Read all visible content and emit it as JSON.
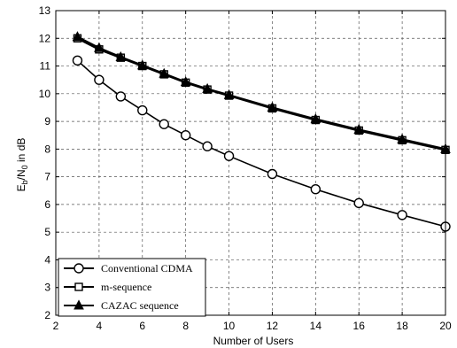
{
  "chart_data": {
    "type": "line",
    "title": "",
    "xlabel": "Number of Users",
    "ylabel_main": "E",
    "ylabel_sub1": "b",
    "ylabel_mid": "/N",
    "ylabel_sub2": "0",
    "ylabel_tail": " in dB",
    "xlim": [
      2,
      20
    ],
    "ylim": [
      2,
      13
    ],
    "xticks": [
      2,
      4,
      6,
      8,
      10,
      12,
      14,
      16,
      18,
      20
    ],
    "yticks": [
      2,
      3,
      4,
      5,
      6,
      7,
      8,
      9,
      10,
      11,
      12,
      13
    ],
    "grid": true,
    "legend_position": "bottom-left",
    "x": [
      3,
      4,
      5,
      6,
      7,
      8,
      9,
      10,
      12,
      14,
      16,
      18,
      20
    ],
    "series": [
      {
        "name": "Conventional CDMA",
        "marker": "circle",
        "values": [
          11.2,
          10.5,
          9.9,
          9.4,
          8.9,
          8.5,
          8.1,
          7.75,
          7.1,
          6.55,
          6.05,
          5.62,
          5.2
        ]
      },
      {
        "name": "m-sequence",
        "marker": "square",
        "values": [
          12.0,
          11.6,
          11.3,
          11.0,
          10.7,
          10.4,
          10.15,
          9.93,
          9.47,
          9.05,
          8.67,
          8.32,
          7.97
        ]
      },
      {
        "name": "CAZAC sequence",
        "marker": "triangle",
        "values": [
          12.05,
          11.65,
          11.32,
          11.02,
          10.72,
          10.42,
          10.17,
          9.95,
          9.5,
          9.08,
          8.7,
          8.35,
          8.0
        ]
      }
    ],
    "colors": {
      "line": "#000000",
      "grid": "#555555",
      "background": "#ffffff"
    }
  }
}
